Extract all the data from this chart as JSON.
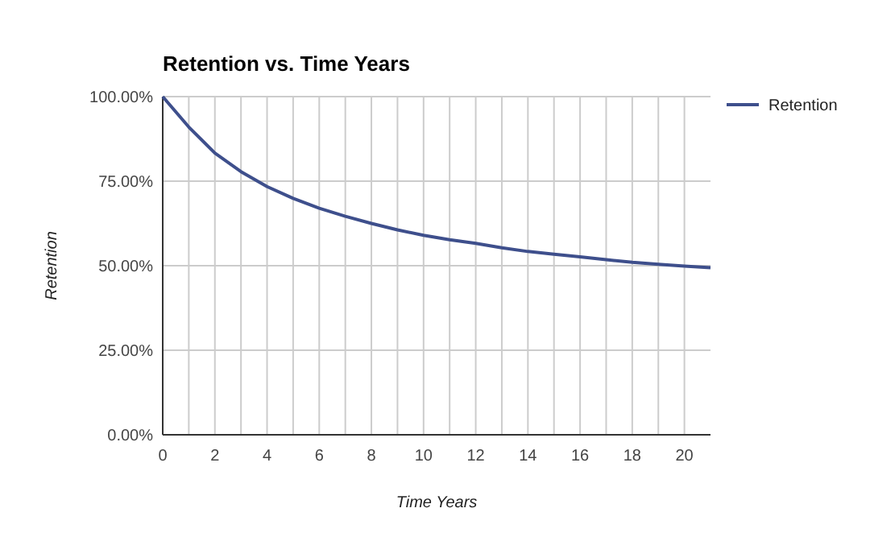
{
  "chart_data": {
    "type": "line",
    "title": "Retention vs. Time Years",
    "xlabel": "Time Years",
    "ylabel": "Retention",
    "x": [
      0,
      1,
      2,
      3,
      4,
      5,
      6,
      7,
      8,
      9,
      10,
      11,
      12,
      13,
      14,
      15,
      16,
      17,
      18,
      19,
      20,
      21
    ],
    "series": [
      {
        "name": "Retention",
        "color": "#3e4f8c",
        "values": [
          100,
          91,
          83.3,
          77.8,
          73.4,
          69.9,
          67,
          64.6,
          62.5,
          60.6,
          59,
          57.7,
          56.6,
          55.3,
          54.2,
          53.4,
          52.6,
          51.8,
          51,
          50.4,
          49.9,
          49.4
        ]
      }
    ],
    "xlim": [
      0,
      21
    ],
    "xticks": [
      0,
      {
        "value": 1,
        "label": null
      },
      2,
      {
        "value": 3,
        "label": null
      },
      4,
      {
        "value": 5,
        "label": null
      },
      6,
      {
        "value": 7,
        "label": null
      },
      8,
      {
        "value": 9,
        "label": null
      },
      10,
      {
        "value": 11,
        "label": null
      },
      12,
      {
        "value": 13,
        "label": null
      },
      14,
      {
        "value": 15,
        "label": null
      },
      16,
      {
        "value": 17,
        "label": null
      },
      18,
      {
        "value": 19,
        "label": null
      },
      20
    ],
    "ylim": [
      0,
      100
    ],
    "yticks": [
      {
        "value": 0,
        "label": "0.00%"
      },
      {
        "value": 25,
        "label": "25.00%"
      },
      {
        "value": 50,
        "label": "50.00%"
      },
      {
        "value": 75,
        "label": "75.00%"
      },
      {
        "value": 100,
        "label": "100.00%"
      }
    ],
    "grid": true,
    "legend": "top right",
    "marker": "none",
    "line_style": "solid"
  }
}
